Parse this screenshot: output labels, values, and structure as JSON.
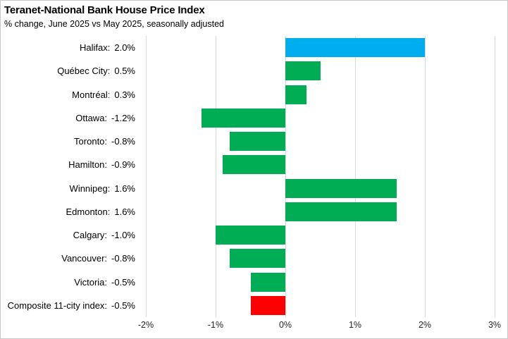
{
  "title": "Teranet-National Bank House Price Index",
  "subtitle": "% change, June 2025 vs May 2025, seasonally adjusted",
  "colors": {
    "highlight_blue": "#00AEEF",
    "bar_green": "#00AC54",
    "composite_red": "#FE0000",
    "gridline": "#D9D9D9",
    "border": "#C9C9C9",
    "tick_text": "#262626",
    "label_text": "#000000"
  },
  "chart_data": {
    "type": "bar",
    "orientation": "horizontal",
    "title": "Teranet-National Bank House Price Index",
    "subtitle": "% change, June 2025 vs May 2025, seasonally adjusted",
    "categories": [
      "Halifax",
      "Québec City",
      "Montréal",
      "Ottawa",
      "Toronto",
      "Hamilton",
      "Winnipeg",
      "Edmonton",
      "Calgary",
      "Vancouver",
      "Victoria",
      "Composite 11-city index"
    ],
    "values": [
      2.0,
      0.5,
      0.3,
      -1.2,
      -0.8,
      -0.9,
      1.6,
      1.6,
      -1.0,
      -0.8,
      -0.5,
      -0.5
    ],
    "value_labels": [
      "2.0%",
      "0.5%",
      "0.3%",
      "-1.2%",
      "-0.8%",
      "-0.9%",
      "1.6%",
      "1.6%",
      "-1.0%",
      "-0.8%",
      "-0.5%",
      "-0.5%"
    ],
    "bar_colors": [
      "#00AEEF",
      "#00AC54",
      "#00AC54",
      "#00AC54",
      "#00AC54",
      "#00AC54",
      "#00AC54",
      "#00AC54",
      "#00AC54",
      "#00AC54",
      "#00AC54",
      "#FE0000"
    ],
    "xlabel": "",
    "ylabel": "",
    "xlim": [
      -2,
      3
    ],
    "x_tick_values": [
      -2,
      -1,
      0,
      1,
      2,
      3
    ],
    "x_tick_labels": [
      "-2%",
      "-1%",
      "0%",
      "1%",
      "2%",
      "3%"
    ],
    "grid": "vertical-on",
    "legend": "none"
  }
}
